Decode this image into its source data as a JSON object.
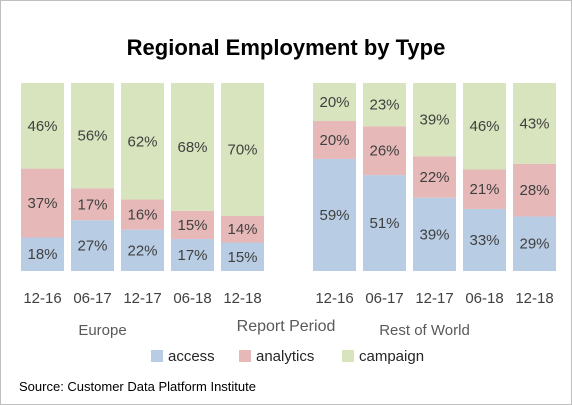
{
  "chart_data": {
    "type": "bar",
    "stacked": true,
    "normalized": true,
    "title": "Regional Employment by Type",
    "xlabel": "Report Period",
    "source": "Source: Customer Data Platform Institute",
    "legend_position": "bottom",
    "groups": [
      {
        "name": "Europe",
        "categories": [
          "12-16",
          "06-17",
          "12-17",
          "06-18",
          "12-18"
        ],
        "series": [
          {
            "name": "access",
            "values": [
              18,
              27,
              22,
              17,
              15
            ]
          },
          {
            "name": "analytics",
            "values": [
              37,
              17,
              16,
              15,
              14
            ]
          },
          {
            "name": "campaign",
            "values": [
              46,
              56,
              62,
              68,
              70
            ]
          }
        ]
      },
      {
        "name": "Rest of World",
        "categories": [
          "12-16",
          "06-17",
          "12-17",
          "06-18",
          "12-18"
        ],
        "series": [
          {
            "name": "access",
            "values": [
              59,
              51,
              39,
              33,
              29
            ]
          },
          {
            "name": "analytics",
            "values": [
              20,
              26,
              22,
              21,
              28
            ]
          },
          {
            "name": "campaign",
            "values": [
              20,
              23,
              39,
              46,
              43
            ]
          }
        ]
      }
    ],
    "colors": {
      "access": "#b8cce4",
      "analytics": "#e6b9b8",
      "campaign": "#d7e4bd"
    }
  }
}
